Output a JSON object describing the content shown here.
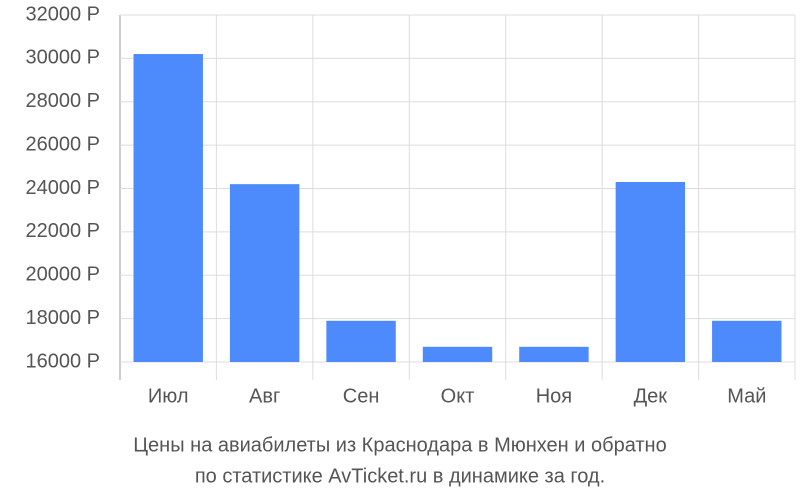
{
  "chart_data": {
    "type": "bar",
    "caption": [
      "Цены на авиабилеты из Краснодара в Мюнхен и обратно",
      "по статистике AvTicket.ru в динамике за год."
    ],
    "categories": [
      "Июл",
      "Авг",
      "Сен",
      "Окт",
      "Ноя",
      "Дек",
      "Май"
    ],
    "values": [
      30200,
      24200,
      17900,
      16700,
      16700,
      24300,
      17900
    ],
    "color": "#4d8afc",
    "ylim": [
      16000,
      32000
    ],
    "yticks": [
      {
        "value": 16000,
        "label": "16000 Р"
      },
      {
        "value": 18000,
        "label": "18000 Р"
      },
      {
        "value": 20000,
        "label": "20000 Р"
      },
      {
        "value": 22000,
        "label": "22000 Р"
      },
      {
        "value": 24000,
        "label": "24000 Р"
      },
      {
        "value": 26000,
        "label": "26000 Р"
      },
      {
        "value": 28000,
        "label": "28000 Р"
      },
      {
        "value": 30000,
        "label": "30000 Р"
      },
      {
        "value": 32000,
        "label": "32000 Р"
      }
    ],
    "grid": true
  }
}
